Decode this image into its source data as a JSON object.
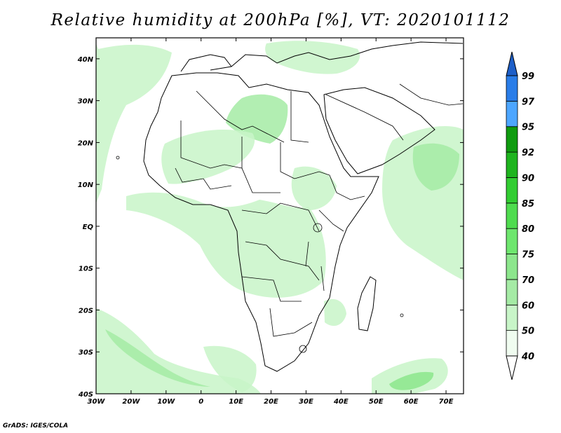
{
  "title": "Relative humidity at 200hPa [%], VT: 2020101112",
  "credit": "GrADS: IGES/COLA",
  "map": {
    "lon_range": [
      -30,
      75
    ],
    "lat_range": [
      -40,
      45
    ],
    "lon_ticks": [
      {
        "value": -30,
        "label": "30W"
      },
      {
        "value": -20,
        "label": "20W"
      },
      {
        "value": -10,
        "label": "10W"
      },
      {
        "value": 0,
        "label": "0"
      },
      {
        "value": 10,
        "label": "10E"
      },
      {
        "value": 20,
        "label": "20E"
      },
      {
        "value": 30,
        "label": "30E"
      },
      {
        "value": 40,
        "label": "40E"
      },
      {
        "value": 50,
        "label": "50E"
      },
      {
        "value": 60,
        "label": "60E"
      },
      {
        "value": 70,
        "label": "70E"
      }
    ],
    "lat_ticks": [
      {
        "value": 40,
        "label": "40N"
      },
      {
        "value": 30,
        "label": "30N"
      },
      {
        "value": 20,
        "label": "20N"
      },
      {
        "value": 10,
        "label": "10N"
      },
      {
        "value": 0,
        "label": "EQ"
      },
      {
        "value": -10,
        "label": "10S"
      },
      {
        "value": -20,
        "label": "20S"
      },
      {
        "value": -30,
        "label": "30S"
      },
      {
        "value": -40,
        "label": "40S"
      }
    ]
  },
  "colorbar": {
    "levels": [
      "40",
      "50",
      "60",
      "70",
      "75",
      "80",
      "85",
      "90",
      "92",
      "95",
      "97",
      "99"
    ],
    "colors": [
      "#f0fcf0",
      "#c8f5c8",
      "#a5eba5",
      "#8ce68c",
      "#6ee66e",
      "#4fdc4f",
      "#32cd32",
      "#1eb41e",
      "#0f9b0f",
      "#4da6ff",
      "#2a7de8",
      "#1e5fc8"
    ],
    "low_color": "#ffffff",
    "high_color": "#1e5fc8"
  }
}
